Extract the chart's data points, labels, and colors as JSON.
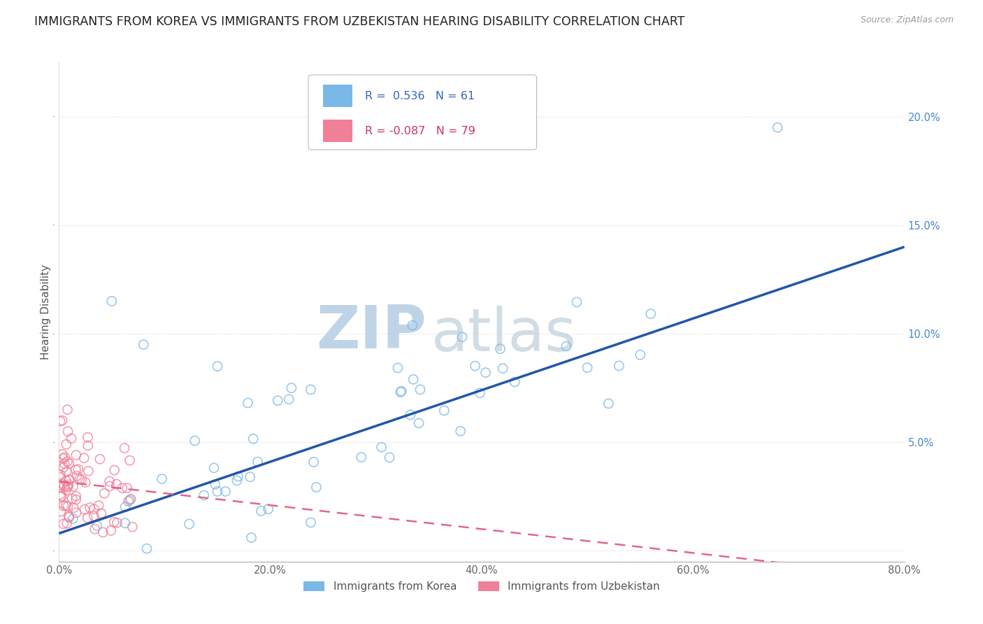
{
  "title": "IMMIGRANTS FROM KOREA VS IMMIGRANTS FROM UZBEKISTAN HEARING DISABILITY CORRELATION CHART",
  "source": "Source: ZipAtlas.com",
  "ylabel": "Hearing Disability",
  "xlim": [
    0.0,
    0.8
  ],
  "ylim": [
    -0.005,
    0.225
  ],
  "korea_R": 0.536,
  "korea_N": 61,
  "uzbekistan_R": -0.087,
  "uzbekistan_N": 79,
  "korea_color": "#7ab8e8",
  "uzbekistan_color": "#f08098",
  "korea_line_color": "#2255aa",
  "uzbekistan_line_color": "#e06888",
  "watermark_zip": "ZIP",
  "watermark_atlas": "atlas",
  "watermark_color": "#c5d8ea",
  "legend_label_korea": "Immigrants from Korea",
  "legend_label_uzbekistan": "Immigrants from Uzbekistan",
  "background_color": "#ffffff",
  "grid_color": "#d8d8d8",
  "title_fontsize": 12.5,
  "axis_fontsize": 11,
  "tick_fontsize": 10.5,
  "korea_line_intercept": 0.008,
  "korea_line_slope": 0.165,
  "uzbek_line_intercept": 0.032,
  "uzbek_line_slope": -0.055
}
